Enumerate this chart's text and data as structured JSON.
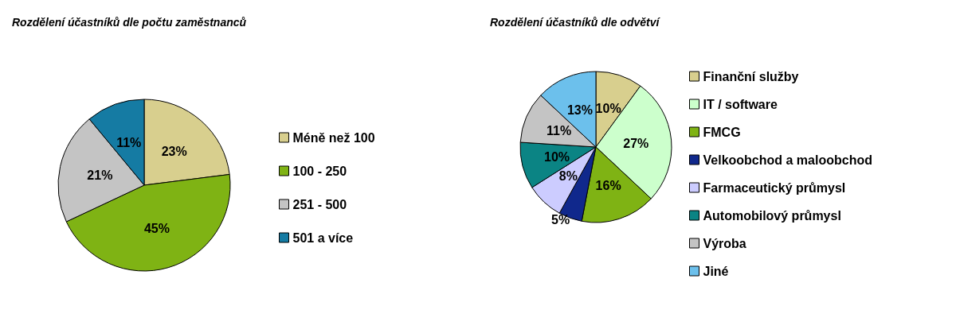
{
  "chart_data": [
    {
      "type": "pie",
      "title": "Rozdělení účastníků dle počtu zaměstnanců",
      "categories": [
        "Méně než 100",
        "100 - 250",
        "251 - 500",
        "501 a více"
      ],
      "values": [
        23,
        45,
        21,
        11
      ],
      "colors": [
        "#d8cf8e",
        "#7fb314",
        "#c4c4c4",
        "#157ba3"
      ],
      "value_labels": [
        "23%",
        "45%",
        "21%",
        "11%"
      ],
      "legend": "right"
    },
    {
      "type": "pie",
      "title": "Rozdělení účastníků dle odvětví",
      "categories": [
        "Finanční služby",
        "IT / software",
        "FMCG",
        "Velkoobchod a maloobchod",
        "Farmaceutický průmysl",
        "Automobilový průmysl",
        "Výroba",
        "Jiné"
      ],
      "values": [
        10,
        27,
        16,
        5,
        8,
        10,
        11,
        13
      ],
      "colors": [
        "#d8cf8e",
        "#ccffcc",
        "#7fb314",
        "#10288c",
        "#ccccff",
        "#0b8484",
        "#c4c4c4",
        "#6cc0ec"
      ],
      "value_labels": [
        "10%",
        "27%",
        "16%",
        "5%",
        "8%",
        "10%",
        "11%",
        "13%"
      ],
      "legend": "right"
    }
  ]
}
